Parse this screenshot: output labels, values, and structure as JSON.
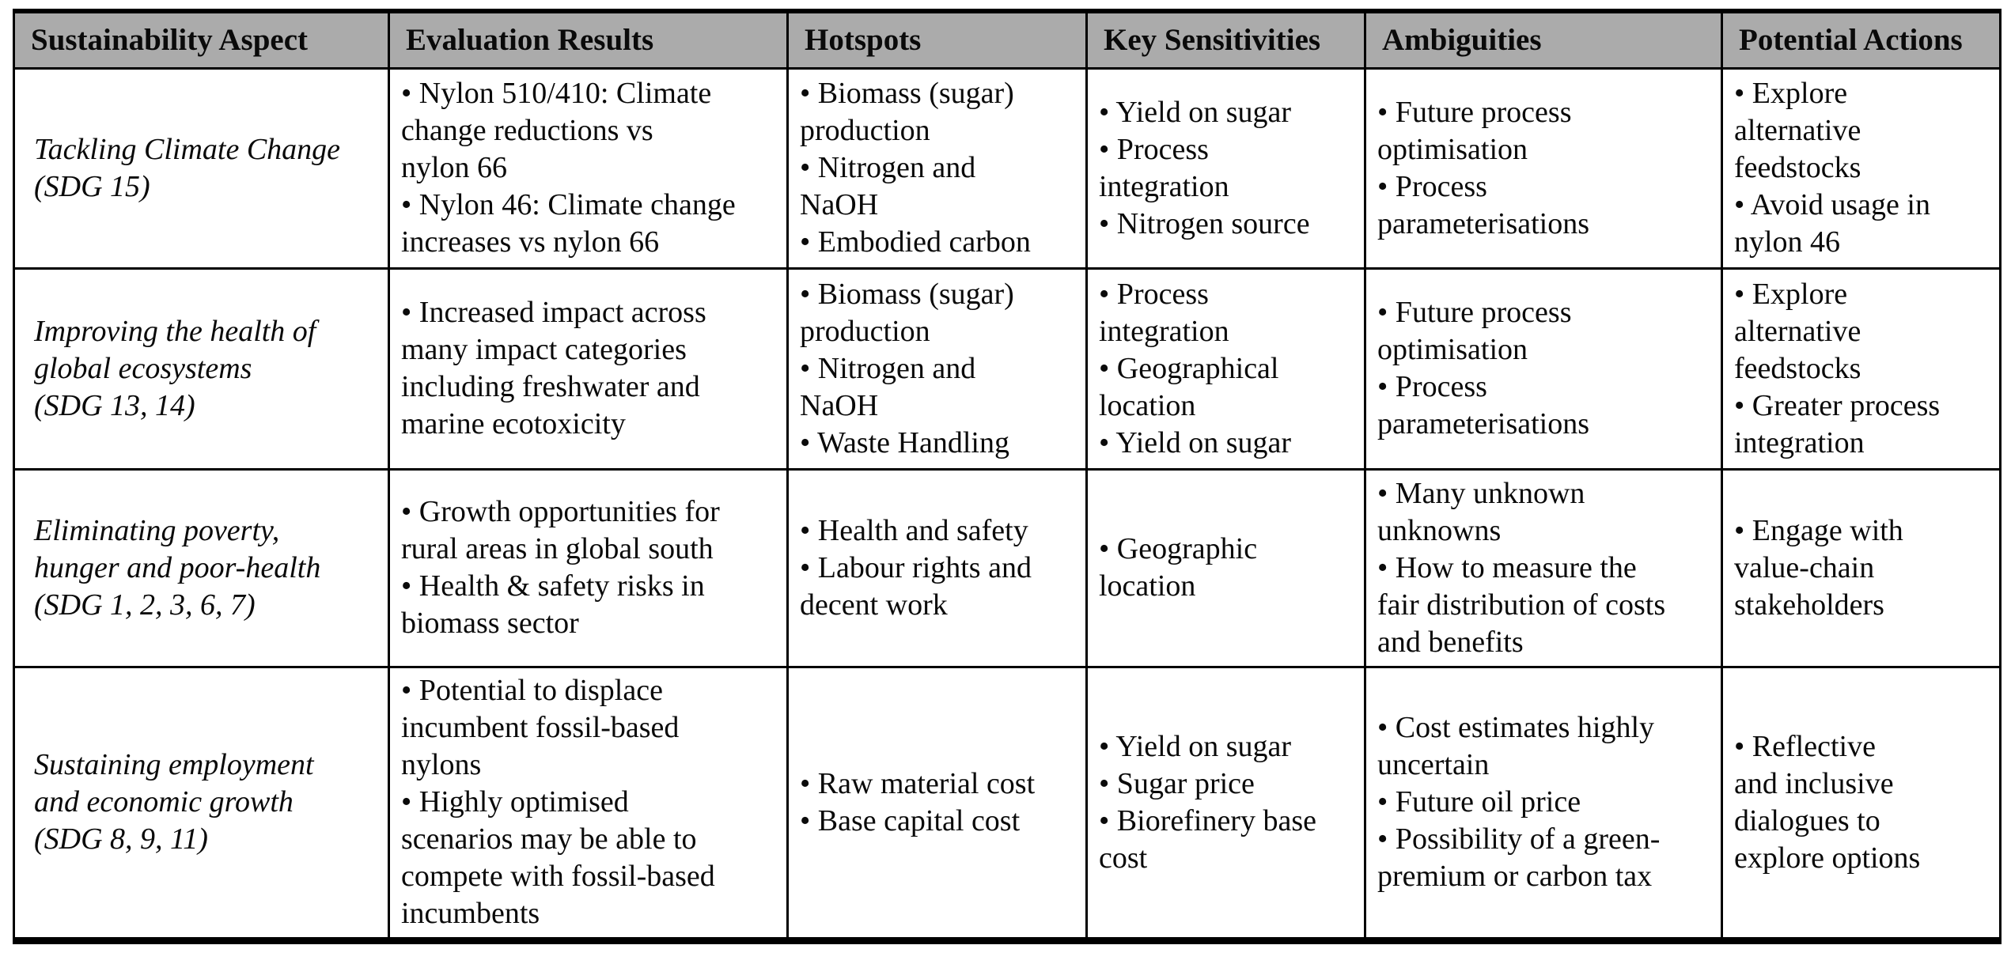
{
  "colors": {
    "header_bg": "#ababab",
    "border": "#000000",
    "text": "#0a0a0a",
    "background": "#ffffff"
  },
  "table": {
    "columns": [
      "Sustainability Aspect",
      "Evaluation Results",
      "Hotspots",
      "Key Sensitivities",
      "Ambiguities",
      "Potential Actions"
    ],
    "rows": [
      {
        "aspect": "Tackling Climate Change\n(SDG 15)",
        "evaluation_results": "• Nylon 510/410: Climate\nchange reductions vs\nnylon 66\n• Nylon 46: Climate change\nincreases vs nylon 66",
        "hotspots": "• Biomass (sugar)\nproduction\n• Nitrogen and\nNaOH\n• Embodied carbon",
        "key_sensitivities": "• Yield on sugar\n• Process\nintegration\n• Nitrogen source",
        "ambiguities": "• Future process\noptimisation\n• Process\nparameterisations",
        "potential_actions": "• Explore\nalternative\nfeedstocks\n• Avoid usage in\nnylon 46"
      },
      {
        "aspect": "Improving the health of\nglobal ecosystems\n(SDG 13, 14)",
        "evaluation_results": "• Increased impact across\nmany impact categories\nincluding freshwater and\nmarine ecotoxicity",
        "hotspots": "• Biomass (sugar)\nproduction\n• Nitrogen and\nNaOH\n• Waste Handling",
        "key_sensitivities": "• Process\nintegration\n• Geographical\nlocation\n• Yield on sugar",
        "ambiguities": "• Future process\noptimisation\n• Process\nparameterisations",
        "potential_actions": "• Explore\nalternative\nfeedstocks\n• Greater process\nintegration"
      },
      {
        "aspect": "Eliminating poverty,\nhunger and poor-health\n(SDG 1, 2, 3, 6, 7)",
        "evaluation_results": "• Growth opportunities for\nrural areas in global south\n• Health & safety risks in\nbiomass sector",
        "hotspots": "• Health and safety\n• Labour rights and\ndecent work",
        "key_sensitivities": "• Geographic\nlocation",
        "ambiguities": "• Many unknown\nunknowns\n• How to measure the\nfair distribution of costs\nand benefits",
        "potential_actions": "• Engage with\nvalue-chain\nstakeholders"
      },
      {
        "aspect": "Sustaining employment\nand economic growth\n(SDG 8, 9, 11)",
        "evaluation_results": "• Potential to displace\nincumbent fossil-based\nnylons\n• Highly optimised\nscenarios may be able to\ncompete with fossil-based\nincumbents",
        "hotspots": "• Raw material cost\n• Base capital cost",
        "key_sensitivities": "• Yield on sugar\n• Sugar price\n• Biorefinery base\ncost",
        "ambiguities": "• Cost estimates highly\nuncertain\n• Future oil price\n• Possibility of a green-\npremium or carbon tax",
        "potential_actions": "• Reflective\nand inclusive\ndialogues to\nexplore options"
      }
    ]
  }
}
